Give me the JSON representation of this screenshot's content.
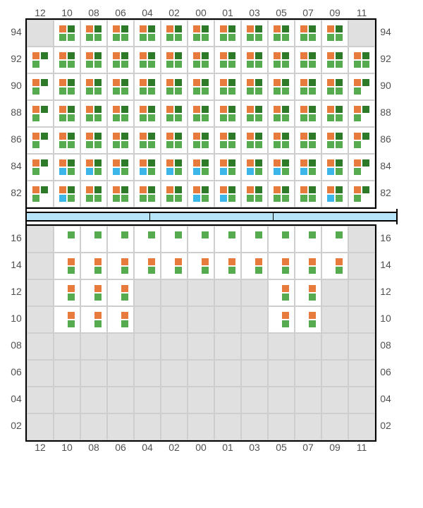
{
  "colors": {
    "orange": "#e77b3e",
    "green": "#57ab4f",
    "darkgreen": "#2d7a28",
    "blue": "#3cb5e8",
    "cellBg": "#ffffff",
    "emptyBg": "#e0e0e0",
    "gridBorder": "#cecece",
    "outerBorder": "#000000",
    "labelColor": "#515151",
    "dividerBg": "#b8e4f9"
  },
  "columns": [
    "12",
    "10",
    "08",
    "06",
    "04",
    "02",
    "00",
    "01",
    "03",
    "05",
    "07",
    "09",
    "11"
  ],
  "topRows": [
    "94",
    "92",
    "90",
    "88",
    "86",
    "84",
    "82"
  ],
  "bottomRows": [
    "16",
    "14",
    "12",
    "10",
    "08",
    "06",
    "04",
    "02"
  ],
  "patterns": {
    "A": [
      "orange",
      "darkgreen",
      "green",
      "green"
    ],
    "B": [
      "orange",
      "darkgreen",
      "green",
      ""
    ],
    "C": [
      "orange",
      "darkgreen",
      "blue",
      "green"
    ],
    "D": [
      "orange",
      "darkgreen",
      "blue",
      ""
    ],
    "G": [
      "",
      "green",
      "",
      ""
    ],
    "H": [
      "",
      "orange",
      "",
      "green"
    ],
    "E": []
  },
  "topGrid": [
    [
      "E",
      "A",
      "A",
      "A",
      "A",
      "A",
      "A",
      "A",
      "A",
      "A",
      "A",
      "A",
      "E"
    ],
    [
      "B",
      "A",
      "A",
      "A",
      "A",
      "A",
      "A",
      "A",
      "A",
      "A",
      "A",
      "A",
      "A"
    ],
    [
      "B",
      "A",
      "A",
      "A",
      "A",
      "A",
      "A",
      "A",
      "A",
      "A",
      "A",
      "A",
      "B"
    ],
    [
      "B",
      "A",
      "A",
      "A",
      "A",
      "A",
      "A",
      "A",
      "A",
      "A",
      "A",
      "A",
      "B"
    ],
    [
      "B",
      "A",
      "A",
      "A",
      "A",
      "A",
      "A",
      "A",
      "A",
      "A",
      "A",
      "A",
      "B"
    ],
    [
      "B",
      "C",
      "C",
      "C",
      "C",
      "C",
      "C",
      "C",
      "C",
      "C",
      "C",
      "C",
      "B"
    ],
    [
      "B",
      "C",
      "A",
      "A",
      "A",
      "A",
      "C",
      "C",
      "A",
      "A",
      "A",
      "C",
      "B"
    ]
  ],
  "bottomGrid": [
    [
      "E",
      "G",
      "G",
      "G",
      "G",
      "G",
      "G",
      "G",
      "G",
      "G",
      "G",
      "G",
      "E"
    ],
    [
      "E",
      "H",
      "H",
      "H",
      "H",
      "H",
      "H",
      "H",
      "H",
      "H",
      "H",
      "H",
      "E"
    ],
    [
      "E",
      "H",
      "H",
      "H",
      "E",
      "E",
      "E",
      "E",
      "E",
      "H",
      "H",
      "E",
      "E"
    ],
    [
      "E",
      "H",
      "H",
      "H",
      "E",
      "E",
      "E",
      "E",
      "E",
      "H",
      "H",
      "E",
      "E"
    ],
    [
      "E",
      "E",
      "E",
      "E",
      "E",
      "E",
      "E",
      "E",
      "E",
      "E",
      "E",
      "E",
      "E"
    ],
    [
      "E",
      "E",
      "E",
      "E",
      "E",
      "E",
      "E",
      "E",
      "E",
      "E",
      "E",
      "E",
      "E"
    ],
    [
      "E",
      "E",
      "E",
      "E",
      "E",
      "E",
      "E",
      "E",
      "E",
      "E",
      "E",
      "E",
      "E"
    ],
    [
      "E",
      "E",
      "E",
      "E",
      "E",
      "E",
      "E",
      "E",
      "E",
      "E",
      "E",
      "E",
      "E"
    ]
  ],
  "dividerSegments": 3
}
